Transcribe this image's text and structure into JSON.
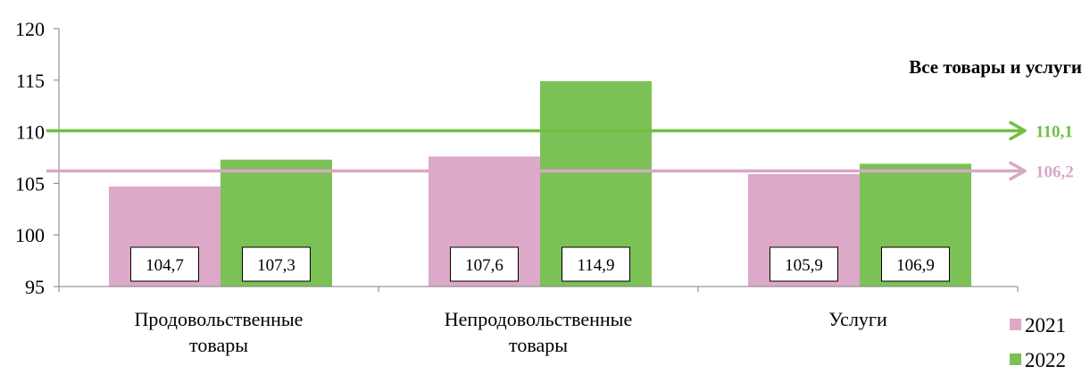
{
  "chart_data": {
    "type": "bar",
    "categories": [
      [
        "Продовольственные",
        "товары"
      ],
      [
        "Непродовольственные",
        "товары"
      ],
      [
        "Услуги"
      ]
    ],
    "series": [
      {
        "name": "2021",
        "values": [
          104.7,
          107.6,
          105.9
        ],
        "labels": [
          "104,7",
          "107,6",
          "105,9"
        ],
        "color": "#DDA9C8"
      },
      {
        "name": "2022",
        "values": [
          107.3,
          114.9,
          106.9
        ],
        "labels": [
          "107,3",
          "114,9",
          "106,9"
        ],
        "color": "#7BC156"
      }
    ],
    "ylim": [
      95,
      120
    ],
    "yticks": [
      95,
      100,
      105,
      110,
      115,
      120
    ],
    "reference_title": "Все товары и услуги",
    "reference_lines": [
      {
        "series": "2022",
        "value": 110.1,
        "label": "110,1",
        "color": "#6FBF44"
      },
      {
        "series": "2021",
        "value": 106.2,
        "label": "106,2",
        "color": "#D8A8C6"
      }
    ],
    "legend_position": "bottom-right"
  }
}
